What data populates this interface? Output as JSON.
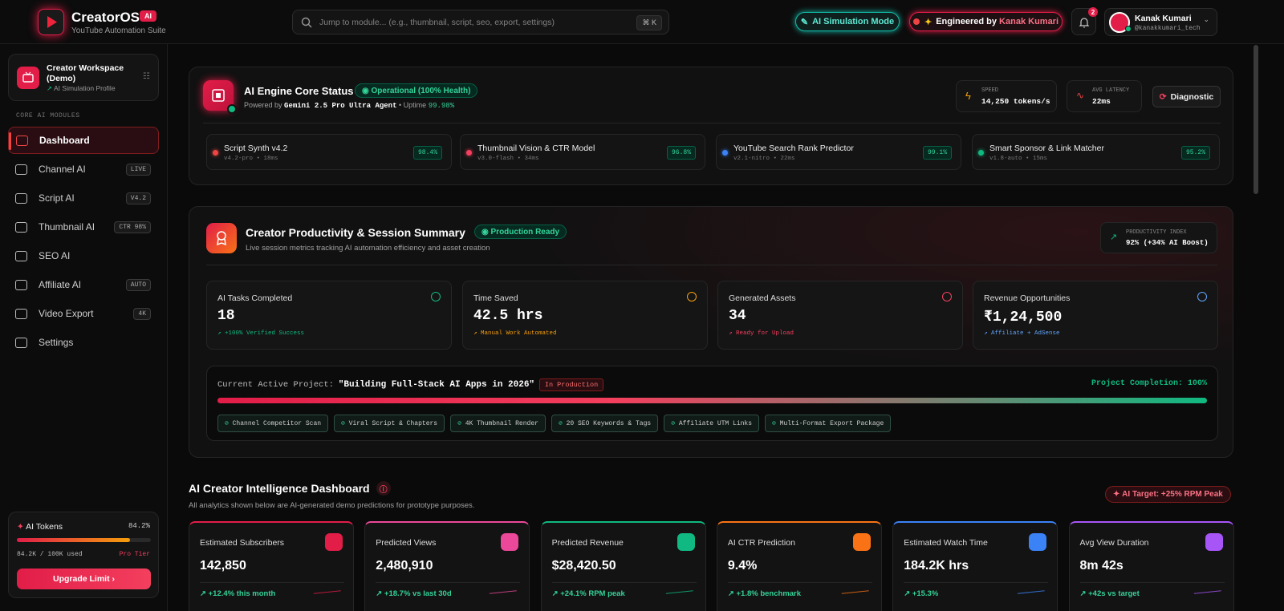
{
  "header": {
    "brand": "CreatorOS",
    "brand_badge": "AI",
    "tagline": "YouTube Automation Suite",
    "search_placeholder": "Jump to module... (e.g., thumbnail, script, seo, export, settings)",
    "search_shortcut": "⌘ K",
    "simulation_mode": "AI Simulation Mode",
    "engineered_by": "Engineered by",
    "engineer_name": "Kanak Kumari",
    "notification_count": 2,
    "user_name": "Kanak Kumari",
    "user_handle": "@kanakkumari_tech"
  },
  "sidebar": {
    "workspace_title": "Creator Workspace (Demo)",
    "workspace_subtitle": "AI Simulation Profile",
    "section_label": "CORE AI MODULES",
    "nav": [
      {
        "label": "Dashboard",
        "active": true
      },
      {
        "label": "Channel AI",
        "tag": "LIVE"
      },
      {
        "label": "Script AI",
        "tag": "V4.2"
      },
      {
        "label": "Thumbnail AI",
        "tag": "CTR 98%"
      },
      {
        "label": "SEO AI"
      },
      {
        "label": "Affiliate AI",
        "tag": "AUTO"
      },
      {
        "label": "Video Export",
        "tag": "4K"
      },
      {
        "label": "Settings"
      }
    ],
    "tokens": {
      "title": "AI Tokens",
      "used": {
        "value": 84.2,
        "label": "84.2%"
      },
      "usage": "84.2K / 100K used",
      "tier": "Pro Tier",
      "button": "Upgrade Limit"
    }
  },
  "engine": {
    "title": "AI Engine Core Status",
    "status": "Operational (100% Health)",
    "powered_by": "Powered by",
    "model": "Gemini 2.5 Pro Ultra Agent",
    "uptime_label": "• Uptime",
    "uptime": "99.98%",
    "speed_label": "SPEED",
    "speed": "14,250 tokens/s",
    "latency_label": "AVG LATENCY",
    "latency": "22ms",
    "diagnostic": "Diagnostic",
    "models": [
      {
        "name": "Script Synth v4.2",
        "meta": "v4.2-pro • 18ms",
        "score": "98.4%",
        "color": "#ef4444"
      },
      {
        "name": "Thumbnail Vision & CTR Model",
        "meta": "v3.0-flash • 34ms",
        "score": "96.8%",
        "color": "#f43f5e"
      },
      {
        "name": "YouTube Search Rank Predictor",
        "meta": "v2.1-nitro • 22ms",
        "score": "99.1%",
        "color": "#3b82f6"
      },
      {
        "name": "Smart Sponsor & Link Matcher",
        "meta": "v1.8-auto • 15ms",
        "score": "95.2%",
        "color": "#10b981"
      }
    ]
  },
  "productivity": {
    "title": "Creator Productivity & Session Summary",
    "status": "Production Ready",
    "subtitle": "Live session metrics tracking AI automation efficiency and asset creation",
    "index_label": "PRODUCTIVITY INDEX",
    "index": "92% (+34% AI Boost)",
    "stats": [
      {
        "label": "AI Tasks Completed",
        "value": 18,
        "note": "+100% Verified Success",
        "color": "#10b981"
      },
      {
        "label": "Time Saved",
        "value": "42.5 hrs",
        "note": "Manual Work Automated",
        "color": "#f59e0b"
      },
      {
        "label": "Generated Assets",
        "value": 34,
        "note": "Ready for Upload",
        "color": "#f43f5e"
      },
      {
        "label": "Revenue Opportunities",
        "value": "₹1,24,500",
        "note": "Affiliate + AdSense",
        "color": "#60a5fa"
      }
    ],
    "project": {
      "label": "Current Active Project:",
      "name": "\"Building Full-Stack AI Apps in 2026\"",
      "status": "In Production",
      "completion": {
        "value": 100,
        "label": "Project Completion: 100%"
      },
      "steps": [
        "Channel Competitor Scan",
        "Viral Script & Chapters",
        "4K Thumbnail Render",
        "20 SEO Keywords & Tags",
        "Affiliate UTM Links",
        "Multi-Format Export Package"
      ]
    }
  },
  "dashboard": {
    "title": "AI Creator Intelligence Dashboard",
    "subtitle": "All analytics shown below are AI-generated demo predictions for prototype purposes.",
    "target": "AI Target: +25% RPM Peak",
    "kpis": [
      {
        "label": "Estimated Subscribers",
        "value": "142,850",
        "change": "+12.4% this month",
        "color": "#e11d48"
      },
      {
        "label": "Predicted Views",
        "value": "2,480,910",
        "change": "+18.7% vs last 30d",
        "color": "#ec4899"
      },
      {
        "label": "Predicted Revenue",
        "value": "$28,420.50",
        "change": "+24.1% RPM peak",
        "color": "#10b981"
      },
      {
        "label": "AI CTR Prediction",
        "value": "9.4%",
        "change": "+1.8% benchmark",
        "color": "#f97316"
      },
      {
        "label": "Estimated Watch Time",
        "value": "184.2K hrs",
        "change": "+15.3%",
        "color": "#3b82f6"
      },
      {
        "label": "Avg View Duration",
        "value": "8m 42s",
        "change": "+42s vs target",
        "color": "#a855f7"
      }
    ]
  }
}
